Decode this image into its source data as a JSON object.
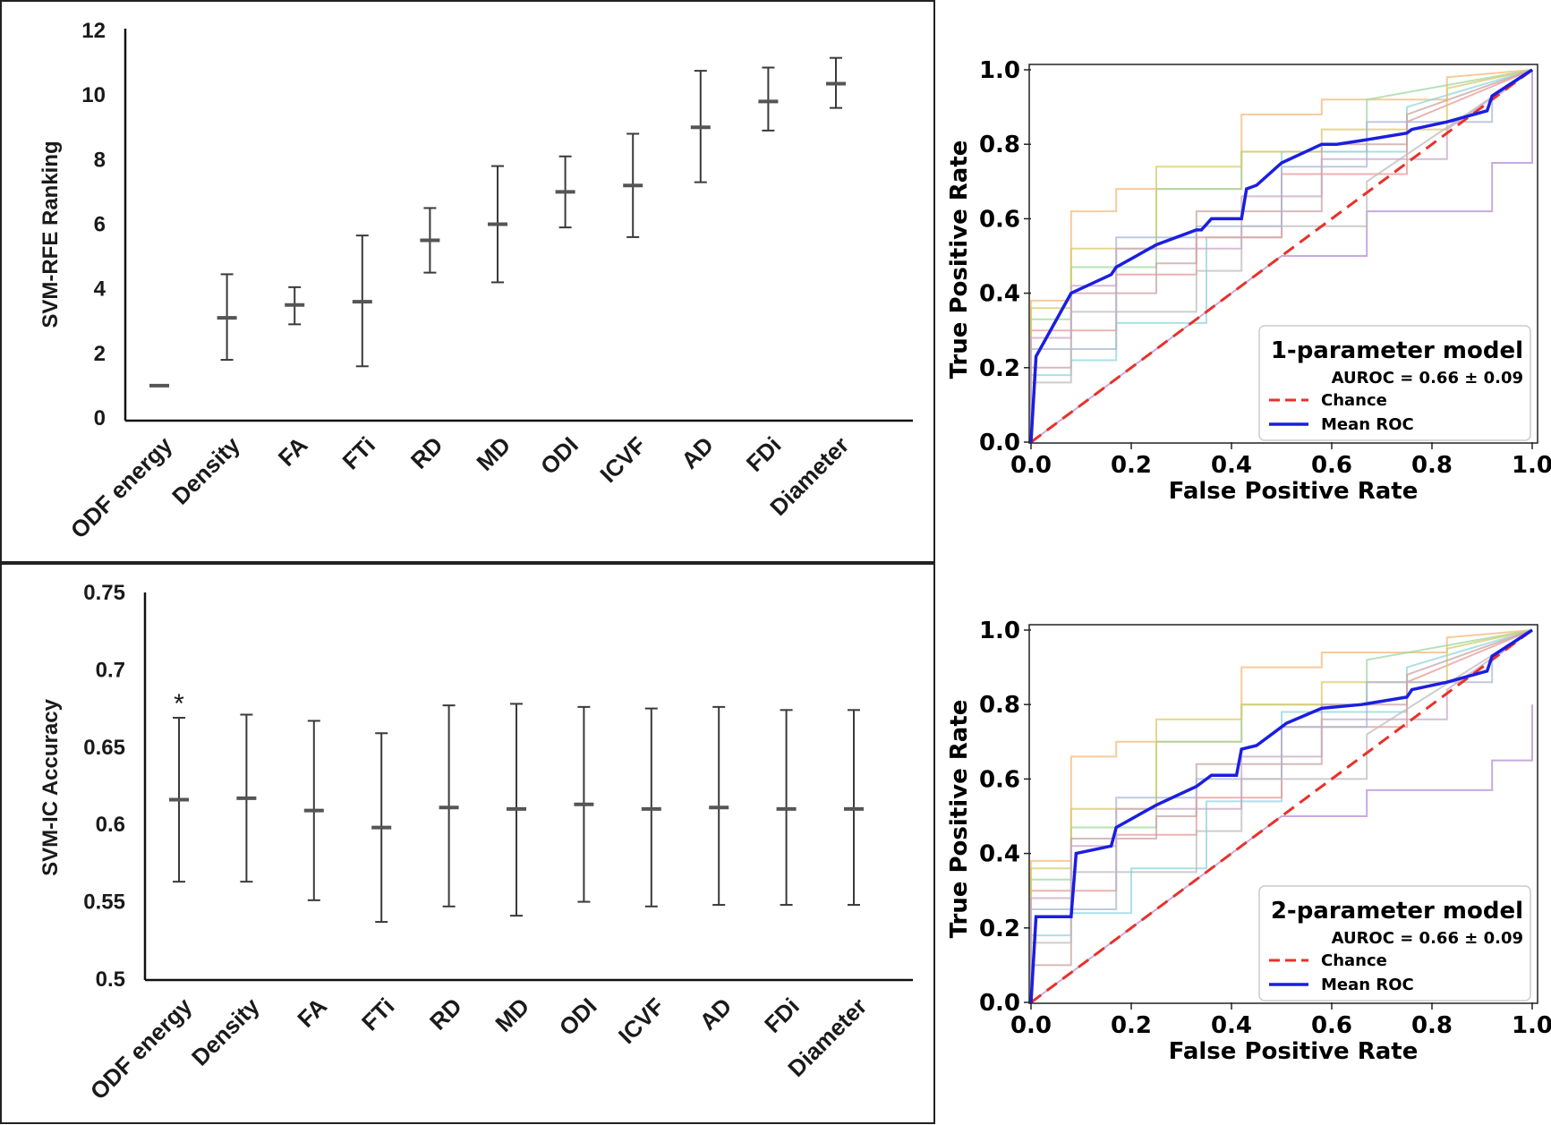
{
  "chart_data": [
    {
      "type": "errorbar",
      "title": "",
      "xlabel": "",
      "ylabel": "SVM-RFE Ranking",
      "ylim": [
        0,
        12
      ],
      "yticks": [
        0,
        2,
        4,
        6,
        8,
        10,
        12
      ],
      "ytick_labels": [
        "0",
        "2",
        "4",
        "6",
        "8",
        "10",
        "12"
      ],
      "categories": [
        "ODF energy",
        "Density",
        "FA",
        "FTi",
        "RD",
        "MD",
        "ODI",
        "ICVF",
        "AD",
        "FDi",
        "Diameter"
      ],
      "values": [
        1.0,
        3.1,
        3.5,
        3.6,
        5.5,
        6.0,
        7.0,
        7.2,
        9.0,
        9.8,
        10.35
      ],
      "lower": [
        1.0,
        1.8,
        2.9,
        1.6,
        4.5,
        4.2,
        5.9,
        5.6,
        7.3,
        8.9,
        9.6
      ],
      "upper": [
        1.0,
        4.45,
        4.05,
        5.65,
        6.5,
        7.8,
        8.1,
        8.8,
        10.75,
        10.85,
        11.15
      ]
    },
    {
      "type": "errorbar",
      "title": "",
      "xlabel": "",
      "ylabel": "SVM-IC Accuracy",
      "ylim": [
        0.5,
        0.75
      ],
      "yticks": [
        0.5,
        0.55,
        0.6,
        0.65,
        0.7,
        0.75
      ],
      "ytick_labels": [
        "0.5",
        "0.55",
        "0.6",
        "0.65",
        "0.7",
        "0.75"
      ],
      "categories": [
        "ODF energy",
        "Density",
        "FA",
        "FTi",
        "RD",
        "MD",
        "ODI",
        "ICVF",
        "AD",
        "FDi",
        "Diameter"
      ],
      "values": [
        0.616,
        0.617,
        0.609,
        0.598,
        0.611,
        0.61,
        0.613,
        0.61,
        0.611,
        0.61,
        0.61
      ],
      "lower": [
        0.563,
        0.563,
        0.551,
        0.537,
        0.547,
        0.541,
        0.55,
        0.547,
        0.548,
        0.548,
        0.548
      ],
      "upper": [
        0.669,
        0.671,
        0.667,
        0.659,
        0.677,
        0.678,
        0.676,
        0.675,
        0.676,
        0.674,
        0.674
      ],
      "annotations": [
        {
          "category": "ODF energy",
          "text": "*"
        }
      ]
    },
    {
      "type": "line",
      "title": "",
      "xlabel": "False Positive Rate",
      "ylabel": "True Positive Rate",
      "xlim": [
        0,
        1
      ],
      "ylim": [
        0,
        1
      ],
      "ticks": [
        0,
        0.2,
        0.4,
        0.6,
        0.8,
        1
      ],
      "tick_labels": [
        "0.0",
        "0.2",
        "0.4",
        "0.6",
        "0.8",
        "1.0"
      ],
      "legend": {
        "title": "1-parameter model",
        "entries": [
          "AUROC = 0.66 ± 0.09",
          "Chance",
          "Mean ROC"
        ],
        "position": "lower-right"
      },
      "chance": {
        "name": "Chance",
        "color": "#e8312a",
        "x": [
          0,
          1
        ],
        "y": [
          0,
          1
        ]
      },
      "mean_roc": {
        "name": "Mean ROC",
        "color": "#1b1ee0",
        "x": [
          0,
          0.01,
          0.08,
          0.16,
          0.17,
          0.25,
          0.33,
          0.34,
          0.36,
          0.42,
          0.43,
          0.45,
          0.5,
          0.58,
          0.61,
          0.66,
          0.75,
          0.76,
          0.83,
          0.91,
          0.92,
          1.0
        ],
        "y": [
          0,
          0.23,
          0.4,
          0.45,
          0.47,
          0.53,
          0.57,
          0.57,
          0.6,
          0.6,
          0.68,
          0.69,
          0.75,
          0.8,
          0.8,
          0.81,
          0.83,
          0.84,
          0.86,
          0.89,
          0.93,
          1.0
        ]
      },
      "folds": [
        {
          "color": "#f5b87a",
          "x": [
            0,
            0,
            0.08,
            0.08,
            0.17,
            0.17,
            0.42,
            0.42,
            0.58,
            0.58,
            0.83,
            0.83,
            1
          ],
          "y": [
            0,
            0.38,
            0.38,
            0.62,
            0.62,
            0.68,
            0.68,
            0.88,
            0.88,
            0.92,
            0.92,
            0.98,
            1
          ]
        },
        {
          "color": "#9ed8a0",
          "x": [
            0,
            0,
            0.08,
            0.08,
            0.25,
            0.25,
            0.42,
            0.42,
            0.67,
            0.67,
            1
          ],
          "y": [
            0,
            0.33,
            0.33,
            0.47,
            0.47,
            0.68,
            0.68,
            0.78,
            0.78,
            0.92,
            1
          ]
        },
        {
          "color": "#b58cd6",
          "x": [
            0,
            0.5,
            0.5,
            0.67,
            0.67,
            0.92,
            0.92,
            1,
            1
          ],
          "y": [
            0,
            0.5,
            0.5,
            0.5,
            0.62,
            0.62,
            0.75,
            0.75,
            1
          ]
        },
        {
          "color": "#8fd6e0",
          "x": [
            0,
            0,
            0.08,
            0.08,
            0.17,
            0.17,
            0.35,
            0.35,
            0.5,
            0.5,
            0.75,
            0.75,
            1
          ],
          "y": [
            0,
            0.18,
            0.18,
            0.22,
            0.22,
            0.32,
            0.32,
            0.55,
            0.55,
            0.78,
            0.78,
            0.9,
            1
          ]
        },
        {
          "color": "#e89a96",
          "x": [
            0,
            0,
            0.17,
            0.17,
            0.33,
            0.33,
            0.5,
            0.5,
            0.75,
            0.75,
            1
          ],
          "y": [
            0,
            0.3,
            0.3,
            0.45,
            0.45,
            0.55,
            0.55,
            0.72,
            0.72,
            0.86,
            1
          ]
        },
        {
          "color": "#d9c96a",
          "x": [
            0,
            0,
            0.08,
            0.08,
            0.25,
            0.25,
            0.42,
            0.42,
            0.58,
            0.58,
            0.83,
            0.83,
            1
          ],
          "y": [
            0,
            0.36,
            0.36,
            0.52,
            0.52,
            0.74,
            0.74,
            0.78,
            0.78,
            0.84,
            0.84,
            0.95,
            1
          ]
        },
        {
          "color": "#c9a3a3",
          "x": [
            0,
            0,
            0.08,
            0.08,
            0.25,
            0.25,
            0.33,
            0.33,
            0.58,
            0.58,
            0.75,
            0.75,
            1
          ],
          "y": [
            0,
            0.2,
            0.2,
            0.4,
            0.4,
            0.48,
            0.48,
            0.62,
            0.62,
            0.8,
            0.8,
            0.88,
            1
          ]
        },
        {
          "color": "#a9b7d6",
          "x": [
            0,
            0,
            0.17,
            0.17,
            0.33,
            0.33,
            0.5,
            0.5,
            0.67,
            0.67,
            0.92,
            0.92,
            1
          ],
          "y": [
            0,
            0.25,
            0.25,
            0.55,
            0.55,
            0.58,
            0.58,
            0.74,
            0.74,
            0.86,
            0.86,
            0.92,
            1
          ]
        },
        {
          "color": "#bcbcbc",
          "x": [
            0,
            0,
            0.08,
            0.08,
            0.33,
            0.33,
            0.42,
            0.42,
            0.67,
            0.67,
            1
          ],
          "y": [
            0,
            0.16,
            0.16,
            0.35,
            0.35,
            0.46,
            0.46,
            0.58,
            0.58,
            0.7,
            1
          ]
        },
        {
          "color": "#c8a8c6",
          "x": [
            0,
            0,
            0.08,
            0.08,
            0.17,
            0.17,
            0.42,
            0.42,
            0.58,
            0.58,
            0.83,
            0.83,
            1
          ],
          "y": [
            0,
            0.28,
            0.28,
            0.42,
            0.42,
            0.52,
            0.52,
            0.66,
            0.66,
            0.76,
            0.76,
            0.84,
            1
          ]
        }
      ]
    },
    {
      "type": "line",
      "title": "",
      "xlabel": "False Positive Rate",
      "ylabel": "True Positive Rate",
      "xlim": [
        0,
        1
      ],
      "ylim": [
        0,
        1
      ],
      "ticks": [
        0,
        0.2,
        0.4,
        0.6,
        0.8,
        1
      ],
      "tick_labels": [
        "0.0",
        "0.2",
        "0.4",
        "0.6",
        "0.8",
        "1.0"
      ],
      "legend": {
        "title": "2-parameter model",
        "entries": [
          "AUROC = 0.66 ± 0.09",
          "Chance",
          "Mean ROC"
        ],
        "position": "lower-right"
      },
      "chance": {
        "name": "Chance",
        "color": "#e8312a",
        "x": [
          0,
          1
        ],
        "y": [
          0,
          1
        ]
      },
      "mean_roc": {
        "name": "Mean ROC",
        "color": "#1b1ee0",
        "x": [
          0,
          0.01,
          0.08,
          0.09,
          0.16,
          0.17,
          0.25,
          0.33,
          0.34,
          0.36,
          0.41,
          0.42,
          0.45,
          0.5,
          0.51,
          0.58,
          0.66,
          0.75,
          0.76,
          0.83,
          0.91,
          0.92,
          1.0
        ],
        "y": [
          0,
          0.23,
          0.23,
          0.4,
          0.42,
          0.47,
          0.53,
          0.58,
          0.59,
          0.61,
          0.61,
          0.68,
          0.69,
          0.74,
          0.75,
          0.79,
          0.8,
          0.82,
          0.84,
          0.86,
          0.89,
          0.93,
          1.0
        ]
      },
      "folds": [
        {
          "color": "#f5b87a",
          "x": [
            0,
            0,
            0.08,
            0.08,
            0.17,
            0.17,
            0.42,
            0.42,
            0.58,
            0.58,
            0.83,
            0.83,
            1
          ],
          "y": [
            0,
            0.38,
            0.38,
            0.66,
            0.66,
            0.7,
            0.7,
            0.9,
            0.9,
            0.94,
            0.94,
            0.98,
            1
          ]
        },
        {
          "color": "#9ed8a0",
          "x": [
            0,
            0,
            0.08,
            0.08,
            0.25,
            0.25,
            0.42,
            0.42,
            0.67,
            0.67,
            1
          ],
          "y": [
            0,
            0.33,
            0.33,
            0.47,
            0.47,
            0.7,
            0.7,
            0.8,
            0.8,
            0.92,
            1
          ]
        },
        {
          "color": "#b58cd6",
          "x": [
            0,
            0.5,
            0.5,
            0.67,
            0.67,
            0.92,
            0.92,
            1,
            1
          ],
          "y": [
            0,
            0.5,
            0.5,
            0.5,
            0.57,
            0.57,
            0.65,
            0.65,
            0.8
          ]
        },
        {
          "color": "#8fd6e0",
          "x": [
            0,
            0,
            0.08,
            0.08,
            0.2,
            0.2,
            0.35,
            0.35,
            0.5,
            0.5,
            0.75,
            0.75,
            1
          ],
          "y": [
            0,
            0.18,
            0.18,
            0.24,
            0.24,
            0.36,
            0.36,
            0.54,
            0.54,
            0.78,
            0.78,
            0.9,
            1
          ]
        },
        {
          "color": "#e89a96",
          "x": [
            0,
            0,
            0.17,
            0.17,
            0.33,
            0.33,
            0.5,
            0.5,
            0.75,
            0.75,
            1
          ],
          "y": [
            0,
            0.3,
            0.3,
            0.45,
            0.45,
            0.55,
            0.55,
            0.74,
            0.74,
            0.86,
            1
          ]
        },
        {
          "color": "#d9c96a",
          "x": [
            0,
            0,
            0.08,
            0.08,
            0.25,
            0.25,
            0.42,
            0.42,
            0.58,
            0.58,
            0.83,
            0.83,
            1
          ],
          "y": [
            0,
            0.36,
            0.36,
            0.52,
            0.52,
            0.76,
            0.76,
            0.8,
            0.8,
            0.86,
            0.86,
            0.95,
            1
          ]
        },
        {
          "color": "#c9a3a3",
          "x": [
            0,
            0,
            0.08,
            0.08,
            0.25,
            0.25,
            0.33,
            0.33,
            0.58,
            0.58,
            0.75,
            0.75,
            1
          ],
          "y": [
            0,
            0.1,
            0.1,
            0.44,
            0.44,
            0.5,
            0.5,
            0.64,
            0.64,
            0.8,
            0.8,
            0.88,
            1
          ]
        },
        {
          "color": "#a9b7d6",
          "x": [
            0,
            0,
            0.17,
            0.17,
            0.33,
            0.33,
            0.5,
            0.5,
            0.67,
            0.67,
            0.92,
            0.92,
            1
          ],
          "y": [
            0,
            0.25,
            0.25,
            0.55,
            0.55,
            0.6,
            0.6,
            0.74,
            0.74,
            0.86,
            0.86,
            0.92,
            1
          ]
        },
        {
          "color": "#bcbcbc",
          "x": [
            0,
            0,
            0.08,
            0.08,
            0.33,
            0.33,
            0.42,
            0.42,
            0.67,
            0.67,
            1
          ],
          "y": [
            0,
            0.16,
            0.16,
            0.35,
            0.35,
            0.46,
            0.46,
            0.6,
            0.6,
            0.72,
            1
          ]
        },
        {
          "color": "#c8a8c6",
          "x": [
            0,
            0,
            0.08,
            0.08,
            0.17,
            0.17,
            0.42,
            0.42,
            0.58,
            0.58,
            0.83,
            0.83,
            1
          ],
          "y": [
            0,
            0.28,
            0.28,
            0.42,
            0.42,
            0.52,
            0.52,
            0.66,
            0.66,
            0.76,
            0.76,
            0.84,
            1
          ]
        }
      ]
    }
  ]
}
